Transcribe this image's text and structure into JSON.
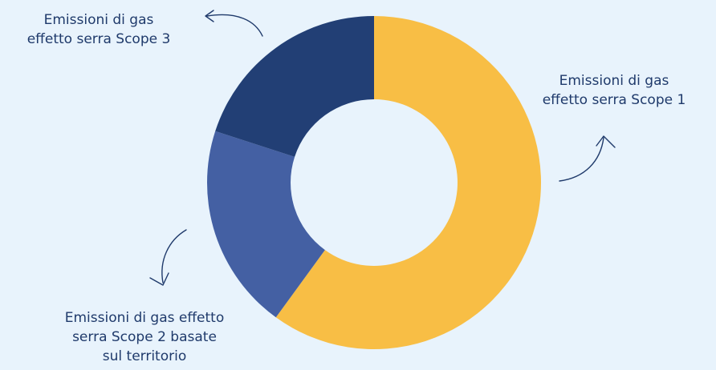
{
  "chart_data": {
    "type": "pie",
    "donut": true,
    "start": "12 o'clock",
    "direction": "clockwise",
    "colors": {
      "background": "#e8f3fc",
      "text": "#1f3a6b"
    },
    "series": [
      {
        "label_lines": [
          "Emissioni di gas",
          "effetto serra Scope 1"
        ],
        "value": 60,
        "color": "#f8be45"
      },
      {
        "label_lines": [
          "Emissioni di gas effetto",
          "serra Scope 2 basate",
          "sul territorio"
        ],
        "value": 20,
        "color": "#4460a3"
      },
      {
        "label_lines": [
          "Emissioni di gas",
          "effetto serra Scope 3"
        ],
        "value": 20,
        "color": "#223f75"
      }
    ]
  }
}
